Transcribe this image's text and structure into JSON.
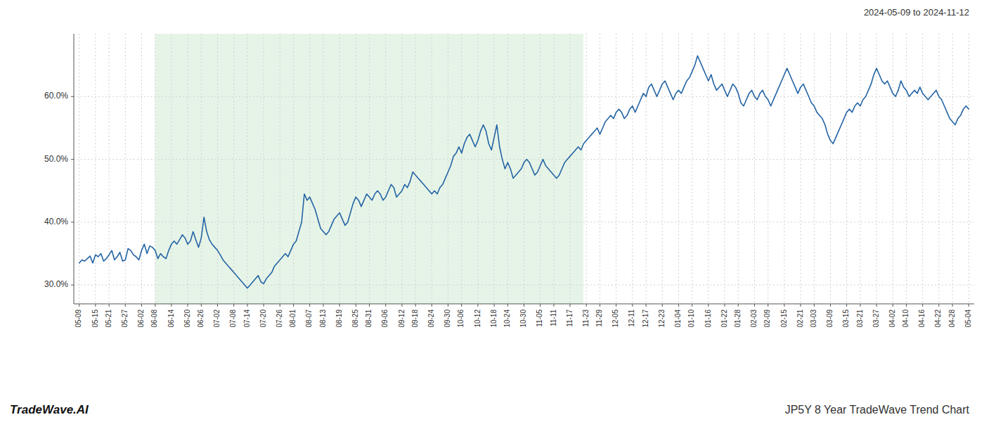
{
  "chart_data": {
    "type": "line",
    "title": "JP5Y 8 Year TradeWave Trend Chart",
    "subtitle": "2024-05-09 to 2024-11-12",
    "annotations": [
      {
        "text": "TradeWave.AI"
      }
    ],
    "color": "#2464a4",
    "grid": true,
    "shaded_region": {
      "start": 27.965,
      "end": 185.885,
      "color": "#c8e6c9"
    },
    "xlim": [
      -2,
      330
    ],
    "xticks": [
      {
        "value": 0,
        "label": "05-09"
      },
      {
        "value": 6,
        "label": "05-15"
      },
      {
        "value": 11,
        "label": "05-21"
      },
      {
        "value": 17,
        "label": "05-27"
      },
      {
        "value": 23,
        "label": "06-02"
      },
      {
        "value": 28,
        "label": "06-08"
      },
      {
        "value": 34,
        "label": "06-14"
      },
      {
        "value": 40,
        "label": "06-20"
      },
      {
        "value": 45,
        "label": "06-26"
      },
      {
        "value": 51,
        "label": "07-02"
      },
      {
        "value": 57,
        "label": "07-08"
      },
      {
        "value": 62,
        "label": "07-14"
      },
      {
        "value": 68,
        "label": "07-20"
      },
      {
        "value": 74,
        "label": "07-26"
      },
      {
        "value": 79,
        "label": "08-01"
      },
      {
        "value": 85,
        "label": "08-07"
      },
      {
        "value": 90,
        "label": "08-13"
      },
      {
        "value": 96,
        "label": "08-19"
      },
      {
        "value": 102,
        "label": "08-25"
      },
      {
        "value": 107,
        "label": "08-31"
      },
      {
        "value": 113,
        "label": "09-06"
      },
      {
        "value": 119,
        "label": "09-12"
      },
      {
        "value": 124,
        "label": "09-18"
      },
      {
        "value": 130,
        "label": "09-24"
      },
      {
        "value": 136,
        "label": "09-30"
      },
      {
        "value": 141,
        "label": "10-06"
      },
      {
        "value": 147,
        "label": "10-12"
      },
      {
        "value": 153,
        "label": "10-18"
      },
      {
        "value": 158,
        "label": "10-24"
      },
      {
        "value": 164,
        "label": "10-30"
      },
      {
        "value": 170,
        "label": "11-05"
      },
      {
        "value": 175,
        "label": "11-11"
      },
      {
        "value": 181,
        "label": "11-17"
      },
      {
        "value": 187,
        "label": "11-23"
      },
      {
        "value": 192,
        "label": "11-29"
      },
      {
        "value": 198,
        "label": "12-05"
      },
      {
        "value": 204,
        "label": "12-11"
      },
      {
        "value": 209,
        "label": "12-17"
      },
      {
        "value": 215,
        "label": "12-23"
      },
      {
        "value": 221,
        "label": "01-04"
      },
      {
        "value": 226,
        "label": "01-10"
      },
      {
        "value": 232,
        "label": "01-16"
      },
      {
        "value": 238,
        "label": "01-22"
      },
      {
        "value": 243,
        "label": "01-28"
      },
      {
        "value": 249,
        "label": "02-03"
      },
      {
        "value": 254,
        "label": "02-09"
      },
      {
        "value": 260,
        "label": "02-15"
      },
      {
        "value": 266,
        "label": "02-21"
      },
      {
        "value": 271,
        "label": "03-03"
      },
      {
        "value": 277,
        "label": "03-09"
      },
      {
        "value": 283,
        "label": "03-15"
      },
      {
        "value": 288,
        "label": "03-21"
      },
      {
        "value": 294,
        "label": "03-27"
      },
      {
        "value": 300,
        "label": "04-02"
      },
      {
        "value": 305,
        "label": "04-10"
      },
      {
        "value": 311,
        "label": "04-16"
      },
      {
        "value": 317,
        "label": "04-22"
      },
      {
        "value": 322,
        "label": "04-28"
      },
      {
        "value": 328,
        "label": "05-04"
      }
    ],
    "ylim": [
      27.0,
      70.0
    ],
    "yticks": [
      {
        "value": 30.0,
        "label": "30.0%"
      },
      {
        "value": 40.0,
        "label": "40.0%"
      },
      {
        "value": 50.0,
        "label": "50.0%"
      },
      {
        "value": 60.0,
        "label": "60.0%"
      }
    ],
    "values": [
      33.5,
      34.0,
      33.8,
      34.2,
      34.6,
      33.5,
      34.8,
      34.5,
      35.0,
      33.8,
      34.2,
      34.8,
      35.5,
      34.0,
      34.5,
      35.2,
      33.8,
      34.0,
      35.8,
      35.5,
      34.8,
      34.5,
      34.0,
      35.5,
      36.5,
      35.0,
      36.2,
      36.0,
      35.5,
      34.2,
      35.0,
      34.5,
      34.2,
      35.5,
      36.5,
      37.0,
      36.5,
      37.2,
      38.0,
      37.5,
      36.5,
      37.0,
      38.5,
      37.2,
      36.0,
      37.5,
      40.8,
      38.5,
      37.2,
      36.5,
      36.0,
      35.5,
      34.8,
      34.0,
      33.5,
      33.0,
      32.5,
      32.0,
      31.5,
      31.0,
      30.5,
      30.0,
      29.5,
      30.0,
      30.5,
      31.0,
      31.5,
      30.5,
      30.2,
      31.0,
      31.5,
      32.0,
      33.0,
      33.5,
      34.0,
      34.5,
      35.0,
      34.5,
      35.5,
      36.5,
      37.0,
      38.5,
      40.0,
      44.5,
      43.5,
      44.0,
      43.0,
      42.0,
      40.5,
      39.0,
      38.5,
      38.0,
      38.5,
      39.5,
      40.5,
      41.0,
      41.5,
      40.5,
      39.5,
      40.0,
      41.5,
      43.0,
      44.0,
      43.5,
      42.5,
      43.5,
      44.5,
      44.0,
      43.5,
      44.5,
      45.0,
      44.5,
      43.5,
      44.0,
      45.0,
      46.0,
      45.5,
      44.0,
      44.5,
      45.0,
      46.0,
      45.5,
      46.5,
      48.0,
      47.5,
      47.0,
      46.5,
      46.0,
      45.5,
      45.0,
      44.5,
      45.0,
      44.5,
      45.5,
      46.0,
      47.0,
      48.0,
      49.0,
      50.5,
      51.0,
      52.0,
      51.0,
      52.5,
      53.5,
      54.0,
      53.0,
      52.0,
      53.0,
      54.5,
      55.5,
      54.5,
      52.5,
      51.5,
      53.5,
      55.5,
      52.0,
      50.0,
      48.5,
      49.5,
      48.5,
      47.0,
      47.5,
      48.0,
      48.5,
      49.5,
      50.0,
      49.5,
      48.5,
      47.5,
      48.0,
      49.0,
      50.0,
      49.0,
      48.5,
      48.0,
      47.5,
      47.0,
      47.5,
      48.5,
      49.5,
      50.0,
      50.5,
      51.0,
      51.5,
      52.0,
      51.5,
      52.5,
      53.0,
      53.5,
      54.0,
      54.5,
      55.0,
      54.0,
      55.0,
      56.0,
      56.5,
      57.0,
      56.5,
      57.5,
      58.0,
      57.5,
      56.5,
      57.0,
      58.0,
      58.5,
      57.5,
      58.5,
      59.5,
      60.5,
      60.0,
      61.5,
      62.0,
      61.0,
      60.0,
      61.0,
      62.0,
      62.5,
      61.5,
      60.5,
      59.5,
      60.5,
      61.0,
      60.5,
      61.5,
      62.5,
      63.0,
      64.0,
      65.0,
      66.5,
      65.5,
      64.5,
      63.5,
      62.5,
      63.5,
      62.0,
      61.0,
      61.5,
      62.0,
      61.0,
      60.0,
      61.0,
      62.0,
      61.5,
      60.5,
      59.0,
      58.5,
      59.5,
      60.5,
      61.0,
      60.0,
      59.5,
      60.5,
      61.0,
      60.0,
      59.5,
      58.5,
      59.5,
      60.5,
      61.5,
      62.5,
      63.5,
      64.5,
      63.5,
      62.5,
      61.5,
      60.5,
      61.5,
      62.0,
      61.0,
      60.0,
      59.0,
      58.5,
      57.5,
      57.0,
      56.5,
      55.5,
      54.0,
      53.0,
      52.5,
      53.5,
      54.5,
      55.5,
      56.5,
      57.5,
      58.0,
      57.5,
      58.5,
      59.0,
      58.5,
      59.5,
      60.0,
      61.0,
      62.0,
      63.5,
      64.5,
      63.5,
      62.5,
      62.0,
      62.5,
      61.5,
      60.5,
      60.0,
      61.0,
      62.5,
      61.5,
      61.0,
      60.0,
      60.5,
      61.0,
      60.5,
      61.5,
      60.5,
      60.0,
      59.5,
      60.0,
      60.5,
      61.0,
      60.0,
      59.5,
      58.5,
      57.5,
      56.5,
      56.0,
      55.5,
      56.5,
      57.0,
      58.0,
      58.5,
      58.0
    ]
  }
}
